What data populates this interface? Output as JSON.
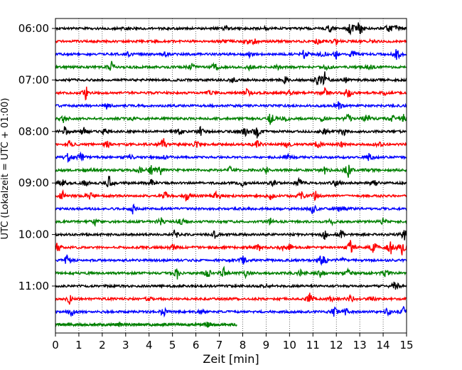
{
  "chart_data": {
    "type": "line",
    "subtype": "helicorder",
    "xlabel": "Zeit  [min]",
    "ylabel": "UTC (Lokalzeit = UTC + 01:00)",
    "xlim": [
      0,
      15
    ],
    "x_ticks": [
      0,
      1,
      2,
      3,
      4,
      5,
      6,
      7,
      8,
      9,
      10,
      11,
      12,
      13,
      14,
      15
    ],
    "x_tick_labels": [
      "0",
      "1",
      "2",
      "3",
      "4",
      "5",
      "6",
      "7",
      "8",
      "9",
      "10",
      "11",
      "12",
      "13",
      "14",
      "15"
    ],
    "y_tick_labels": [
      "06:00",
      "07:00",
      "08:00",
      "09:00",
      "10:00",
      "11:00"
    ],
    "y_tick_trace_index": [
      0,
      4,
      8,
      12,
      16,
      20
    ],
    "trace_minutes": 15,
    "grid": "vertical dotted",
    "colors": [
      "#000000",
      "#ff0000",
      "#0000ff",
      "#008000"
    ],
    "traces": [
      {
        "start": "06:00",
        "color": "#000000",
        "end_min": 15,
        "events": [
          [
            3.0,
            0.3
          ],
          [
            7.3,
            0.2
          ],
          [
            9.0,
            0.2
          ],
          [
            11.7,
            0.45
          ],
          [
            12.6,
            0.7
          ],
          [
            13.0,
            1.0
          ],
          [
            14.2,
            0.4
          ],
          [
            14.5,
            0.55
          ]
        ]
      },
      {
        "start": "06:15",
        "color": "#ff0000",
        "end_min": 15,
        "events": [
          [
            7.2,
            0.2
          ],
          [
            8.2,
            0.3
          ],
          [
            8.5,
            0.35
          ],
          [
            11.2,
            0.35
          ],
          [
            12.0,
            0.25
          ],
          [
            13.5,
            0.2
          ]
        ]
      },
      {
        "start": "06:30",
        "color": "#0000ff",
        "end_min": 15,
        "events": [
          [
            3.1,
            0.25
          ],
          [
            4.7,
            0.2
          ],
          [
            8.3,
            0.25
          ],
          [
            10.6,
            0.6
          ],
          [
            11.4,
            0.3
          ],
          [
            12.0,
            0.4
          ],
          [
            12.7,
            0.5
          ],
          [
            14.6,
            0.7
          ]
        ]
      },
      {
        "start": "06:45",
        "color": "#008000",
        "end_min": 15,
        "events": [
          [
            2.4,
            0.55
          ],
          [
            5.8,
            0.5
          ],
          [
            6.8,
            0.45
          ],
          [
            8.3,
            0.3
          ],
          [
            9.5,
            0.25
          ],
          [
            11.6,
            0.3
          ],
          [
            13.4,
            0.3
          ]
        ]
      },
      {
        "start": "07:00",
        "color": "#000000",
        "end_min": 15,
        "events": [
          [
            7.6,
            0.35
          ],
          [
            9.8,
            0.45
          ],
          [
            11.2,
            0.6
          ],
          [
            11.5,
            0.9
          ],
          [
            12.4,
            0.25
          ]
        ]
      },
      {
        "start": "07:15",
        "color": "#ff0000",
        "end_min": 15,
        "events": [
          [
            1.3,
            0.7
          ],
          [
            6.6,
            0.3
          ],
          [
            8.2,
            0.45
          ],
          [
            10.0,
            0.45
          ],
          [
            11.5,
            0.5
          ],
          [
            12.5,
            0.6
          ],
          [
            14.1,
            0.2
          ]
        ]
      },
      {
        "start": "07:30",
        "color": "#0000ff",
        "end_min": 15,
        "events": [
          [
            2.2,
            0.3
          ],
          [
            12.1,
            0.4
          ]
        ]
      },
      {
        "start": "07:45",
        "color": "#008000",
        "end_min": 15,
        "events": [
          [
            0.35,
            0.5
          ],
          [
            3.3,
            0.2
          ],
          [
            9.2,
            0.7
          ],
          [
            9.8,
            0.35
          ],
          [
            11.4,
            0.2
          ],
          [
            12.5,
            0.45
          ],
          [
            13.3,
            0.5
          ],
          [
            14.4,
            0.35
          ],
          [
            14.9,
            0.5
          ]
        ]
      },
      {
        "start": "08:00",
        "color": "#000000",
        "end_min": 15,
        "events": [
          [
            0.4,
            0.55
          ],
          [
            1.2,
            0.5
          ],
          [
            2.1,
            0.4
          ],
          [
            5.3,
            0.55
          ],
          [
            6.2,
            0.45
          ],
          [
            8.1,
            0.45
          ],
          [
            8.6,
            0.7
          ],
          [
            11.5,
            0.3
          ],
          [
            12.3,
            0.45
          ]
        ]
      },
      {
        "start": "08:15",
        "color": "#ff0000",
        "end_min": 15,
        "events": [
          [
            0.6,
            0.35
          ],
          [
            2.2,
            0.5
          ],
          [
            4.6,
            0.85
          ],
          [
            6.0,
            0.4
          ],
          [
            8.6,
            0.45
          ],
          [
            9.9,
            0.4
          ],
          [
            11.2,
            0.45
          ],
          [
            12.2,
            0.4
          ],
          [
            13.8,
            0.35
          ]
        ]
      },
      {
        "start": "08:30",
        "color": "#0000ff",
        "end_min": 15,
        "events": [
          [
            0.55,
            0.6
          ],
          [
            1.1,
            0.5
          ],
          [
            3.2,
            0.3
          ],
          [
            4.7,
            0.3
          ],
          [
            9.9,
            0.3
          ],
          [
            13.4,
            0.4
          ]
        ]
      },
      {
        "start": "08:45",
        "color": "#008000",
        "end_min": 15,
        "events": [
          [
            1.4,
            0.25
          ],
          [
            3.6,
            0.3
          ],
          [
            4.1,
            0.55
          ],
          [
            4.5,
            0.45
          ],
          [
            7.5,
            0.45
          ],
          [
            9.0,
            0.35
          ],
          [
            11.5,
            0.35
          ],
          [
            12.5,
            0.75
          ],
          [
            13.4,
            0.3
          ]
        ]
      },
      {
        "start": "09:00",
        "color": "#000000",
        "end_min": 15,
        "events": [
          [
            0.3,
            0.4
          ],
          [
            1.3,
            0.45
          ],
          [
            2.3,
            0.7
          ],
          [
            4.1,
            0.35
          ],
          [
            8.0,
            0.3
          ],
          [
            9.3,
            0.3
          ],
          [
            10.4,
            0.45
          ],
          [
            12.0,
            0.35
          ],
          [
            13.6,
            0.5
          ]
        ]
      },
      {
        "start": "09:15",
        "color": "#ff0000",
        "end_min": 15,
        "events": [
          [
            0.3,
            0.5
          ],
          [
            1.5,
            0.45
          ],
          [
            4.7,
            0.4
          ],
          [
            5.6,
            0.6
          ],
          [
            6.9,
            0.6
          ],
          [
            9.2,
            0.4
          ],
          [
            10.5,
            0.45
          ],
          [
            11.1,
            0.5
          ]
        ]
      },
      {
        "start": "09:30",
        "color": "#0000ff",
        "end_min": 15,
        "events": [
          [
            3.3,
            0.5
          ],
          [
            11.0,
            0.55
          ],
          [
            12.2,
            0.55
          ]
        ]
      },
      {
        "start": "09:45",
        "color": "#008000",
        "end_min": 15,
        "events": [
          [
            1.7,
            0.35
          ],
          [
            4.5,
            0.4
          ],
          [
            5.4,
            0.45
          ],
          [
            9.2,
            0.3
          ],
          [
            11.8,
            0.35
          ],
          [
            14.0,
            0.4
          ]
        ]
      },
      {
        "start": "10:00",
        "color": "#000000",
        "end_min": 15,
        "events": [
          [
            5.1,
            0.5
          ],
          [
            6.8,
            0.35
          ],
          [
            11.5,
            0.5
          ],
          [
            12.2,
            0.4
          ],
          [
            14.9,
            0.6
          ]
        ]
      },
      {
        "start": "10:15",
        "color": "#ff0000",
        "end_min": 15,
        "events": [
          [
            0.1,
            0.7
          ],
          [
            5.0,
            0.3
          ],
          [
            8.7,
            0.4
          ],
          [
            9.7,
            0.35
          ],
          [
            10.0,
            0.45
          ],
          [
            12.6,
            0.7
          ],
          [
            13.6,
            0.7
          ],
          [
            14.3,
            0.85
          ],
          [
            14.8,
            0.8
          ]
        ]
      },
      {
        "start": "10:30",
        "color": "#0000ff",
        "end_min": 15,
        "events": [
          [
            0.5,
            0.55
          ],
          [
            8.0,
            0.45
          ],
          [
            11.4,
            1.0
          ],
          [
            12.2,
            0.3
          ]
        ]
      },
      {
        "start": "10:45",
        "color": "#008000",
        "end_min": 15,
        "events": [
          [
            5.2,
            0.6
          ],
          [
            6.5,
            0.6
          ],
          [
            7.2,
            0.5
          ],
          [
            8.1,
            0.4
          ],
          [
            10.5,
            0.45
          ],
          [
            11.3,
            0.45
          ],
          [
            12.5,
            0.35
          ],
          [
            14.1,
            0.35
          ]
        ]
      },
      {
        "start": "11:00",
        "color": "#000000",
        "end_min": 15,
        "events": [
          [
            9.0,
            0.25
          ],
          [
            14.5,
            0.7
          ]
        ]
      },
      {
        "start": "11:15",
        "color": "#ff0000",
        "end_min": 15,
        "events": [
          [
            0.6,
            0.5
          ],
          [
            4.0,
            0.25
          ],
          [
            10.9,
            0.8
          ],
          [
            11.8,
            0.35
          ],
          [
            12.6,
            0.55
          ],
          [
            13.5,
            0.3
          ]
        ]
      },
      {
        "start": "11:30",
        "color": "#0000ff",
        "end_min": 15,
        "events": [
          [
            0.7,
            0.45
          ],
          [
            4.6,
            0.55
          ],
          [
            6.2,
            0.2
          ],
          [
            11.9,
            0.55
          ],
          [
            12.4,
            0.3
          ],
          [
            14.2,
            0.45
          ],
          [
            14.9,
            0.55
          ]
        ]
      },
      {
        "start": "11:45",
        "color": "#008000",
        "end_min": 7.75,
        "events": [
          [
            2.7,
            0.2
          ],
          [
            6.5,
            0.2
          ]
        ]
      }
    ]
  }
}
